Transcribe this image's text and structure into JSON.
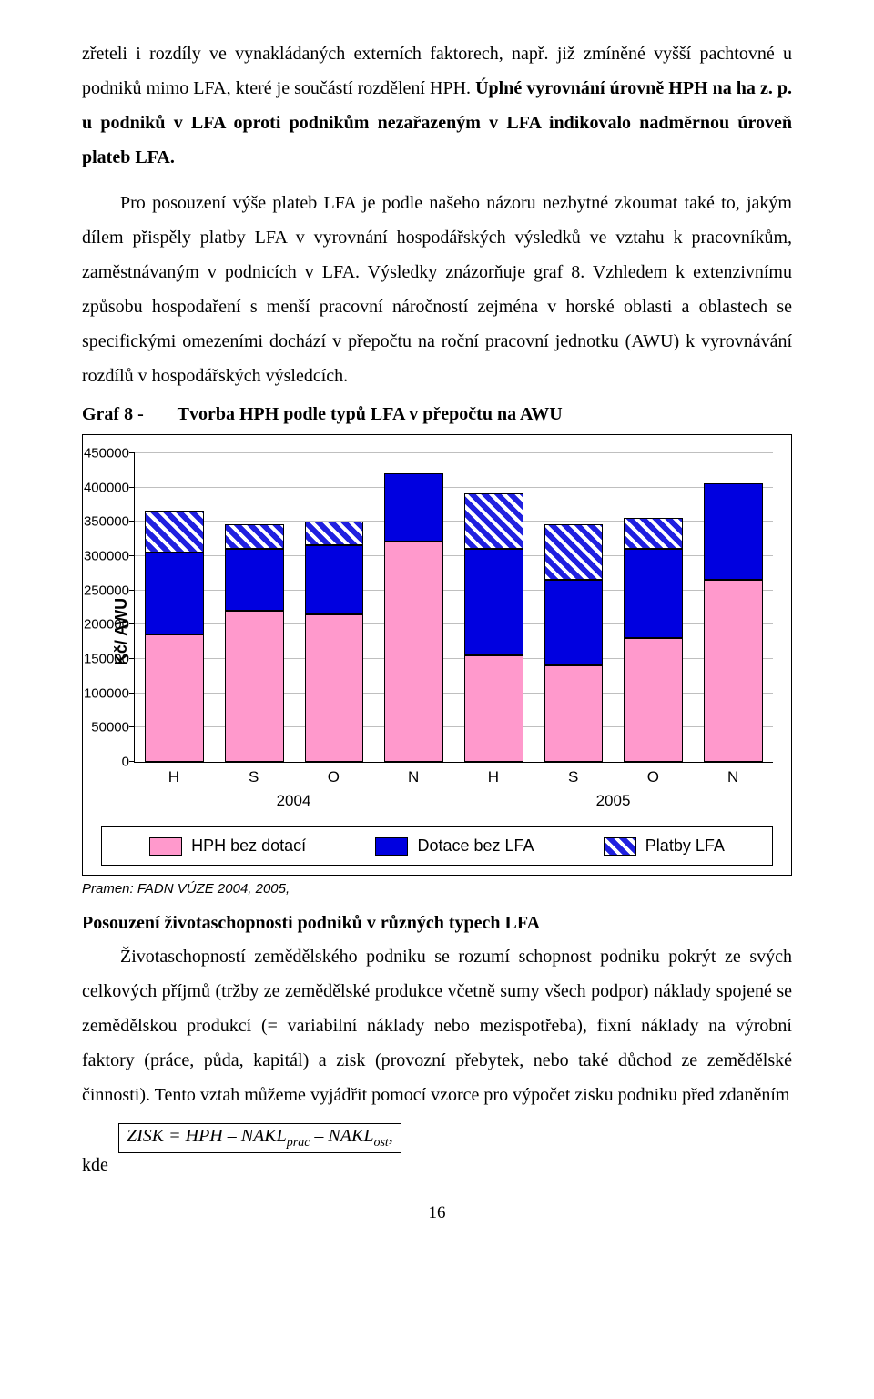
{
  "para1_plain": "zřeteli i rozdíly ve vynakládaných externích faktorech, např. již zmíněné vyšší pachtovné u podniků mimo LFA, které je součástí rozdělení HPH. ",
  "para1_bold": "Úplné vyrovnání úrovně HPH na ha z. p. u podniků v LFA oproti podnikům nezařazeným v LFA indikovalo nadměrnou úroveň plateb LFA.",
  "para2": "Pro posouzení výše plateb LFA je podle našeho názoru nezbytné zkoumat také to, jakým dílem přispěly platby LFA v vyrovnání hospodářských výsledků ve vztahu k pracovníkům, zaměstnávaným v podnicích v LFA. Výsledky znázorňuje graf 8. Vzhledem k extenzivnímu způsobu hospodaření s menší pracovní náročností zejména v horské oblasti a oblastech se specifickými omezeními dochází v přepočtu na roční pracovní jednotku (AWU) k vyrovnávání rozdílů v hospodářských výsledcích.",
  "graf_label": "Graf 8 -",
  "graf_title": "Tvorba HPH podle typů LFA v přepočtu na AWU",
  "chart": {
    "type": "stacked-bar",
    "ylabel": "Kč/ AWU",
    "ylim_max": 450000,
    "ytick_step": 50000,
    "yticks": [
      "0",
      "50000",
      "100000",
      "150000",
      "200000",
      "250000",
      "300000",
      "350000",
      "400000",
      "450000"
    ],
    "background_color": "#ffffff",
    "grid_color": "#bfbfbf",
    "bar_width": 0.74,
    "font": "Arial",
    "ylabel_fontsize": 18,
    "tick_fontsize": 15,
    "cat_labels": [
      "H",
      "S",
      "O",
      "N",
      "H",
      "S",
      "O",
      "N"
    ],
    "years": [
      "2004",
      "2005"
    ],
    "series_names": [
      "HPH bez dotací",
      "Dotace bez LFA",
      "Platby LFA"
    ],
    "series_colors": [
      "#ff99cc",
      "#0000e0",
      "hatch-blue-white"
    ],
    "bars": [
      {
        "pink": 185000,
        "blue": 120000,
        "hatch": 60000
      },
      {
        "pink": 220000,
        "blue": 90000,
        "hatch": 35000
      },
      {
        "pink": 215000,
        "blue": 100000,
        "hatch": 35000
      },
      {
        "pink": 320000,
        "blue": 100000,
        "hatch": 0
      },
      {
        "pink": 155000,
        "blue": 155000,
        "hatch": 80000
      },
      {
        "pink": 140000,
        "blue": 125000,
        "hatch": 80000
      },
      {
        "pink": 180000,
        "blue": 130000,
        "hatch": 45000
      },
      {
        "pink": 265000,
        "blue": 140000,
        "hatch": 0
      }
    ],
    "legend": [
      "HPH bez dotací",
      "Dotace bez LFA",
      "Platby LFA"
    ]
  },
  "source": "Pramen: FADN VÚZE 2004, 2005,",
  "section_title": "Posouzení životaschopnosti podniků v různých typech LFA",
  "para3": "Životaschopností zemědělského podniku se rozumí schopnost podniku pokrýt ze svých celkových příjmů (tržby ze zemědělské produkce včetně sumy všech podpor) náklady spojené se zemědělskou produkcí (= variabilní náklady nebo mezispotřeba), fixní náklady na výrobní faktory (práce, půda, kapitál) a zisk (provozní přebytek, nebo také důchod ze zemědělské činnosti). Tento vztah můžeme vyjádřit pomocí vzorce pro výpočet zisku podniku před zdaněním",
  "formula_html": "ZISK = HPH – NAKL<sub>prac</sub> – NAKL<sub>ost</sub>,",
  "kde": "kde",
  "pagenum": "16"
}
